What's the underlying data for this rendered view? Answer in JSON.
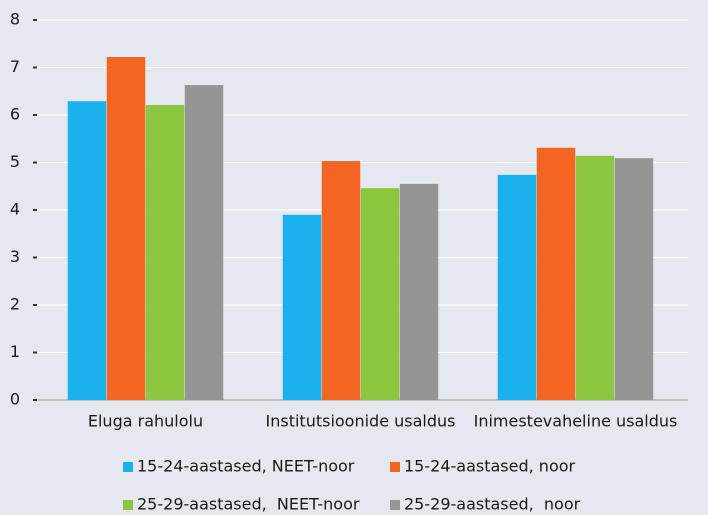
{
  "chart_data": {
    "type": "bar",
    "categories": [
      "Eluga rahulolu",
      "Institutsioonide usaldus",
      "Inimestevaheline usaldus"
    ],
    "series": [
      {
        "name": "15-24-aastased, NEET-noor",
        "color": "#1ab1ec",
        "values": [
          6.29,
          3.9,
          4.74
        ]
      },
      {
        "name": "15-24-aastased, noor",
        "color": "#f26522",
        "values": [
          7.22,
          5.03,
          5.31
        ]
      },
      {
        "name": "25-29-aastased,  NEET-noor",
        "color": "#8dc63f",
        "values": [
          6.21,
          4.46,
          5.14
        ]
      },
      {
        "name": "25-29-aastased,  noor",
        "color": "#959595",
        "values": [
          6.63,
          4.55,
          5.09
        ]
      }
    ],
    "ylim": [
      0,
      8
    ],
    "yticks": [
      0,
      1,
      2,
      3,
      4,
      5,
      6,
      7,
      8
    ],
    "grid": true,
    "legend": "bottom"
  }
}
